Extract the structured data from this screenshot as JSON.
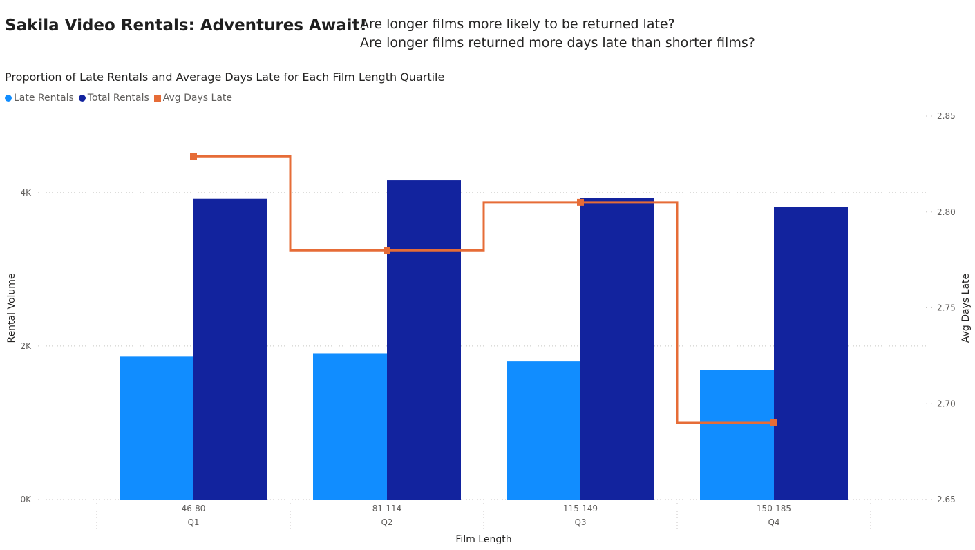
{
  "report": {
    "title": "Sakila Video Rentals: Adventures Await!",
    "question_1": "Are longer films more likely to be returned late?",
    "question_2": "Are longer films returned more days late than shorter films?"
  },
  "colors": {
    "late_rentals": "#118DFF",
    "total_rentals": "#12239E",
    "avg_days_late": "#E66C37",
    "gridline": "#c8c6c4"
  },
  "chart_data": {
    "type": "bar",
    "title": "Proportion of Late Rentals and Average Days Late for Each Film Length Quartile",
    "xlabel": "Film Length",
    "ylabel": "Rental Volume",
    "y2label": "Avg Days Late",
    "categories": [
      "46-80",
      "81-114",
      "115-149",
      "150-185"
    ],
    "category_groups": [
      "Q1",
      "Q2",
      "Q3",
      "Q4"
    ],
    "series": [
      {
        "name": "Late Rentals",
        "type": "bar",
        "axis": "left",
        "values": [
          1870,
          1905,
          1800,
          1685
        ]
      },
      {
        "name": "Total Rentals",
        "type": "bar",
        "axis": "left",
        "values": [
          3920,
          4160,
          3935,
          3815
        ]
      },
      {
        "name": "Avg Days Late",
        "type": "line",
        "axis": "right",
        "values": [
          2.829,
          2.78,
          2.805,
          2.69
        ]
      }
    ],
    "ylim": [
      0,
      4800
    ],
    "y_ticks": [
      0,
      2000,
      4000
    ],
    "y_tick_labels": [
      "0K",
      "2K",
      "4K"
    ],
    "y2lim": [
      2.65,
      2.85
    ],
    "y2_ticks": [
      2.65,
      2.7,
      2.75,
      2.8,
      2.85
    ],
    "y2_tick_labels": [
      "2.65",
      "2.70",
      "2.75",
      "2.80",
      "2.85"
    ],
    "grid": true,
    "legend": "top-left"
  }
}
